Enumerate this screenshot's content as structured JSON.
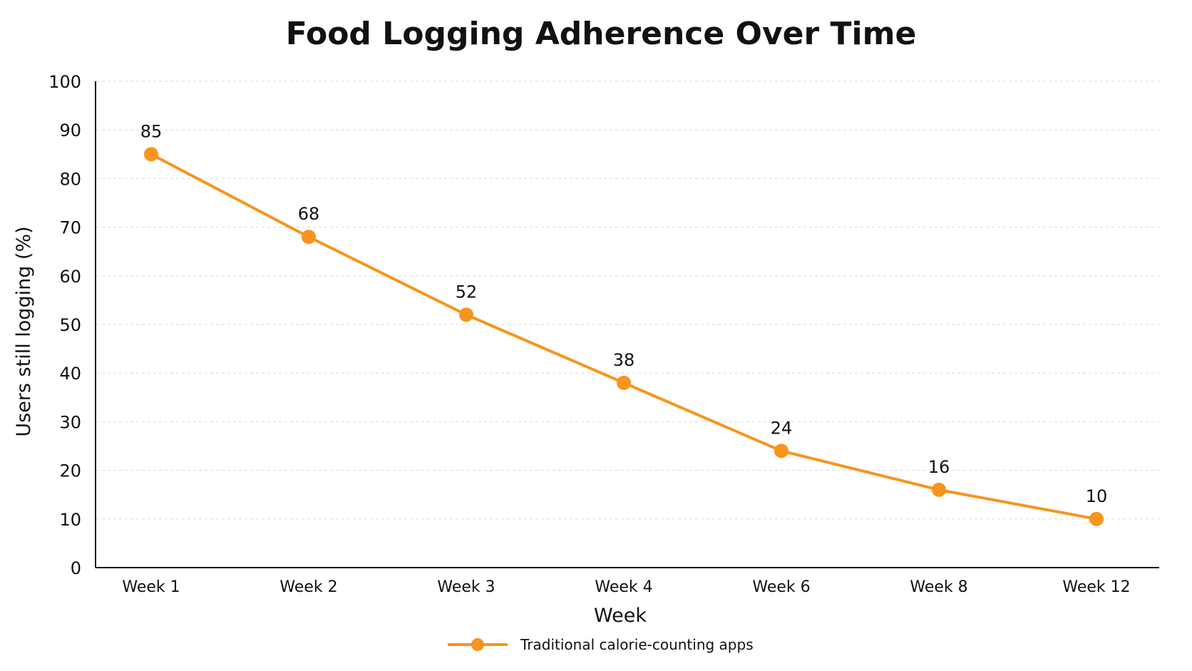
{
  "chart_data": {
    "type": "line",
    "title": "Food Logging Adherence Over Time",
    "xlabel": "Week",
    "ylabel": "Users still logging (%)",
    "categories": [
      "Week 1",
      "Week 2",
      "Week 3",
      "Week 4",
      "Week 6",
      "Week 8",
      "Week 12"
    ],
    "series": [
      {
        "name": "Traditional calorie-counting apps",
        "values": [
          85,
          68,
          52,
          38,
          24,
          16,
          10
        ],
        "labels": [
          "85",
          "68",
          "52",
          "38",
          "24",
          "16",
          "10"
        ],
        "color": "#F7941D"
      }
    ],
    "ylim": [
      0,
      100
    ],
    "yticks": [
      "0",
      "10",
      "20",
      "30",
      "40",
      "50",
      "60",
      "70",
      "80",
      "90",
      "100"
    ],
    "grid": true,
    "legend": "bottom-center"
  }
}
